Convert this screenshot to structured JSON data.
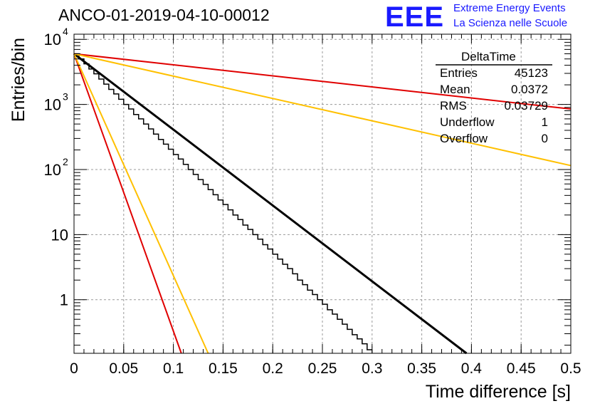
{
  "title": "ANCO-01-2019-04-10-00012",
  "logo": {
    "mark": "EEE",
    "line1": "Extreme Energy Events",
    "line2": "La Scienza nelle Scuole",
    "color": "#1a1aff"
  },
  "stats": {
    "title": "DeltaTime",
    "rows": [
      {
        "label": "Entries",
        "value": "45123"
      },
      {
        "label": "Mean",
        "value": "0.0372"
      },
      {
        "label": "RMS",
        "value": "0.03729"
      },
      {
        "label": "Underflow",
        "value": "1"
      },
      {
        "label": "Overflow",
        "value": "0"
      }
    ]
  },
  "chart_data": {
    "type": "line",
    "title": "ANCO-01-2019-04-10-00012",
    "xlabel": "Time difference [s]",
    "ylabel": "Entries/bin",
    "xlim": [
      0,
      0.5
    ],
    "ylim": [
      0.15,
      12000
    ],
    "yscale": "log",
    "grid": true,
    "x_ticks": [
      "0",
      "0.05",
      "0.1",
      "0.15",
      "0.2",
      "0.25",
      "0.3",
      "0.35",
      "0.4",
      "0.45",
      "0.5"
    ],
    "y_ticks": [
      {
        "value": 1,
        "label": "1"
      },
      {
        "value": 10,
        "label": "10"
      },
      {
        "value": 100,
        "label": "10",
        "exp": "2"
      },
      {
        "value": 1000,
        "label": "10",
        "exp": "3"
      },
      {
        "value": 10000,
        "label": "10",
        "exp": "4"
      }
    ],
    "histogram": {
      "color": "#000000",
      "bins": [
        [
          0.0,
          6000
        ],
        [
          0.005,
          5000
        ],
        [
          0.01,
          4200
        ],
        [
          0.015,
          3500
        ],
        [
          0.02,
          2950
        ],
        [
          0.025,
          2450
        ],
        [
          0.03,
          2050
        ],
        [
          0.035,
          1700
        ],
        [
          0.04,
          1450
        ],
        [
          0.045,
          1200
        ],
        [
          0.05,
          1000
        ],
        [
          0.055,
          850
        ],
        [
          0.06,
          700
        ],
        [
          0.065,
          600
        ],
        [
          0.07,
          500
        ],
        [
          0.075,
          420
        ],
        [
          0.08,
          350
        ],
        [
          0.085,
          290
        ],
        [
          0.09,
          245
        ],
        [
          0.095,
          205
        ],
        [
          0.1,
          170
        ],
        [
          0.105,
          145
        ],
        [
          0.11,
          120
        ],
        [
          0.115,
          100
        ],
        [
          0.12,
          84
        ],
        [
          0.125,
          70
        ],
        [
          0.13,
          59
        ],
        [
          0.135,
          49
        ],
        [
          0.14,
          41
        ],
        [
          0.145,
          34
        ],
        [
          0.15,
          29
        ],
        [
          0.155,
          24
        ],
        [
          0.16,
          20
        ],
        [
          0.165,
          17
        ],
        [
          0.17,
          14
        ],
        [
          0.175,
          12
        ],
        [
          0.18,
          10
        ],
        [
          0.185,
          8.5
        ],
        [
          0.19,
          7
        ],
        [
          0.195,
          6
        ],
        [
          0.2,
          5
        ],
        [
          0.205,
          4.2
        ],
        [
          0.21,
          3.5
        ],
        [
          0.215,
          3
        ],
        [
          0.22,
          2.5
        ],
        [
          0.225,
          2
        ],
        [
          0.23,
          1.7
        ],
        [
          0.235,
          1.4
        ],
        [
          0.24,
          1.2
        ],
        [
          0.245,
          1
        ],
        [
          0.25,
          0.85
        ],
        [
          0.255,
          0.7
        ],
        [
          0.26,
          0.6
        ],
        [
          0.265,
          0.5
        ],
        [
          0.27,
          0.42
        ],
        [
          0.275,
          0.35
        ],
        [
          0.28,
          0.29
        ],
        [
          0.285,
          0.25
        ],
        [
          0.29,
          0.21
        ],
        [
          0.295,
          0.17
        ]
      ]
    },
    "series": [
      {
        "color": "#000000",
        "x": [
          0.0,
          0.395
        ],
        "y": [
          6000,
          0.15
        ]
      },
      {
        "color": "#e00000",
        "x": [
          0.0,
          0.5
        ],
        "y": [
          6000,
          850
        ]
      },
      {
        "color": "#ffc000",
        "x": [
          0.0,
          0.5
        ],
        "y": [
          6000,
          115
        ]
      },
      {
        "color": "#e00000",
        "x": [
          0.0,
          0.108
        ],
        "y": [
          6000,
          0.15
        ]
      },
      {
        "color": "#ffc000",
        "x": [
          0.0,
          0.135
        ],
        "y": [
          6000,
          0.15
        ]
      }
    ]
  }
}
